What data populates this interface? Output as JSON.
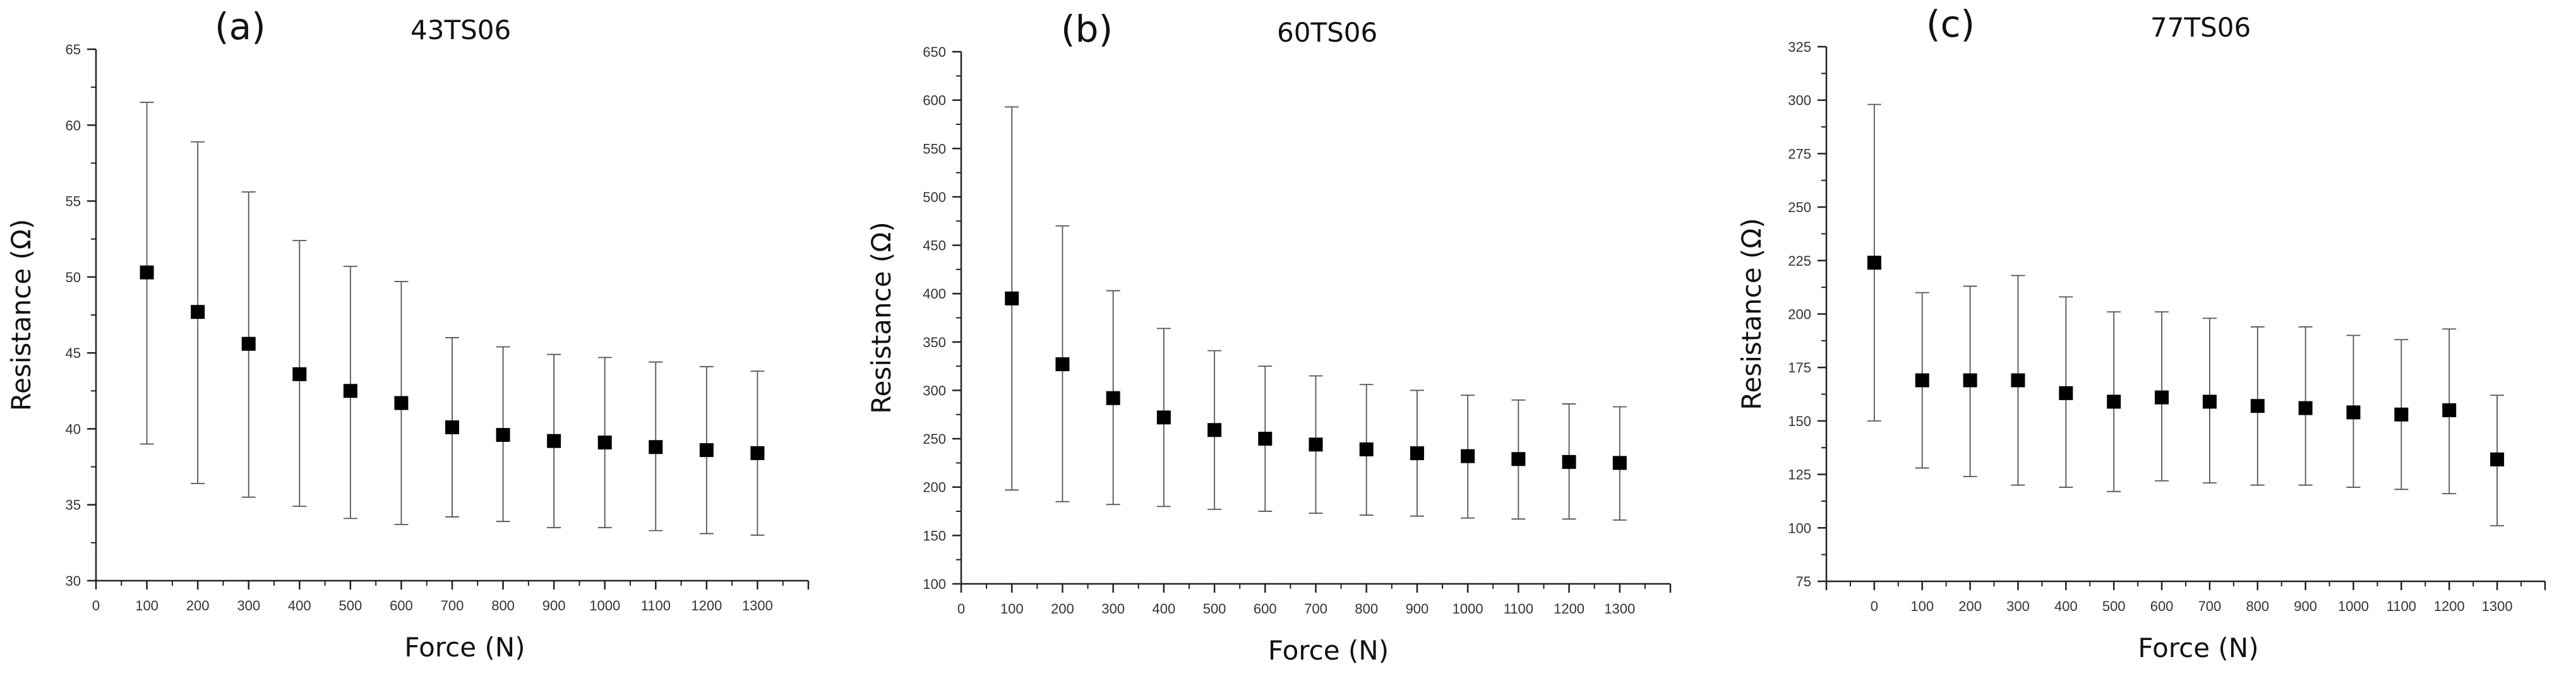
{
  "chart_data": [
    {
      "type": "scatter",
      "panel": "(a)",
      "title": "43TS06",
      "xlabel": "Force (N)",
      "ylabel": "Resistance (Ω)",
      "xlim": [
        0,
        1400
      ],
      "ylim": [
        30,
        65
      ],
      "xticks": [
        "0",
        "100",
        "200",
        "300",
        "400",
        "500",
        "600",
        "700",
        "800",
        "900",
        "1000",
        "1100",
        "1200",
        "1300"
      ],
      "yticks": [
        "30",
        "35",
        "40",
        "45",
        "50",
        "55",
        "60",
        "65"
      ],
      "series": [
        {
          "x": [
            100,
            200,
            300,
            400,
            500,
            600,
            700,
            800,
            900,
            1000,
            1100,
            1200,
            1300
          ],
          "y": [
            50.3,
            47.7,
            45.6,
            43.6,
            42.5,
            41.7,
            40.1,
            39.6,
            39.2,
            39.1,
            38.8,
            38.6,
            38.4
          ],
          "err_high": [
            61.5,
            58.9,
            55.6,
            52.4,
            50.7,
            49.7,
            46.0,
            45.4,
            44.9,
            44.7,
            44.4,
            44.1,
            43.8
          ],
          "err_low": [
            39.0,
            36.4,
            35.5,
            34.9,
            34.1,
            33.7,
            34.2,
            33.9,
            33.5,
            33.5,
            33.3,
            33.1,
            33.0
          ]
        }
      ]
    },
    {
      "type": "scatter",
      "panel": "(b)",
      "title": "60TS06",
      "xlabel": "Force (N)",
      "ylabel": "Resistance (Ω)",
      "xlim": [
        0,
        1400
      ],
      "ylim": [
        100,
        650
      ],
      "xticks": [
        "0",
        "100",
        "200",
        "300",
        "400",
        "500",
        "600",
        "700",
        "800",
        "900",
        "1000",
        "1100",
        "1200",
        "1300"
      ],
      "yticks": [
        "100",
        "150",
        "200",
        "250",
        "300",
        "350",
        "400",
        "450",
        "500",
        "550",
        "600",
        "650"
      ],
      "series": [
        {
          "x": [
            100,
            200,
            300,
            400,
            500,
            600,
            700,
            800,
            900,
            1000,
            1100,
            1200,
            1300
          ],
          "y": [
            395,
            327,
            292,
            272,
            259,
            250,
            244,
            239,
            235,
            232,
            229,
            226,
            225
          ],
          "err_high": [
            593,
            470,
            403,
            364,
            341,
            325,
            315,
            306,
            300,
            295,
            290,
            286,
            283
          ],
          "err_low": [
            197,
            185,
            182,
            180,
            177,
            175,
            173,
            171,
            170,
            168,
            167,
            167,
            166
          ]
        }
      ]
    },
    {
      "type": "scatter",
      "panel": "(c)",
      "title": "77TS06",
      "xlabel": "Force (N)",
      "ylabel": "Resistance (Ω)",
      "xlim": [
        -100,
        1400
      ],
      "ylim": [
        75,
        325
      ],
      "xticks": [
        "0",
        "100",
        "200",
        "300",
        "400",
        "500",
        "600",
        "700",
        "800",
        "900",
        "1000",
        "1100",
        "1200",
        "1300"
      ],
      "yticks": [
        "75",
        "100",
        "125",
        "150",
        "175",
        "200",
        "225",
        "250",
        "275",
        "300",
        "325"
      ],
      "series": [
        {
          "x": [
            0,
            100,
            200,
            300,
            400,
            500,
            600,
            700,
            800,
            900,
            1000,
            1100,
            1200,
            1300
          ],
          "y": [
            224,
            169,
            169,
            169,
            163,
            159,
            161,
            159,
            157,
            156,
            154,
            153,
            155,
            132
          ],
          "err_high": [
            298,
            210,
            213,
            218,
            208,
            201,
            201,
            198,
            194,
            194,
            190,
            188,
            193,
            162
          ],
          "err_low": [
            150,
            128,
            124,
            120,
            119,
            117,
            122,
            121,
            120,
            120,
            119,
            118,
            116,
            101
          ]
        }
      ]
    }
  ]
}
